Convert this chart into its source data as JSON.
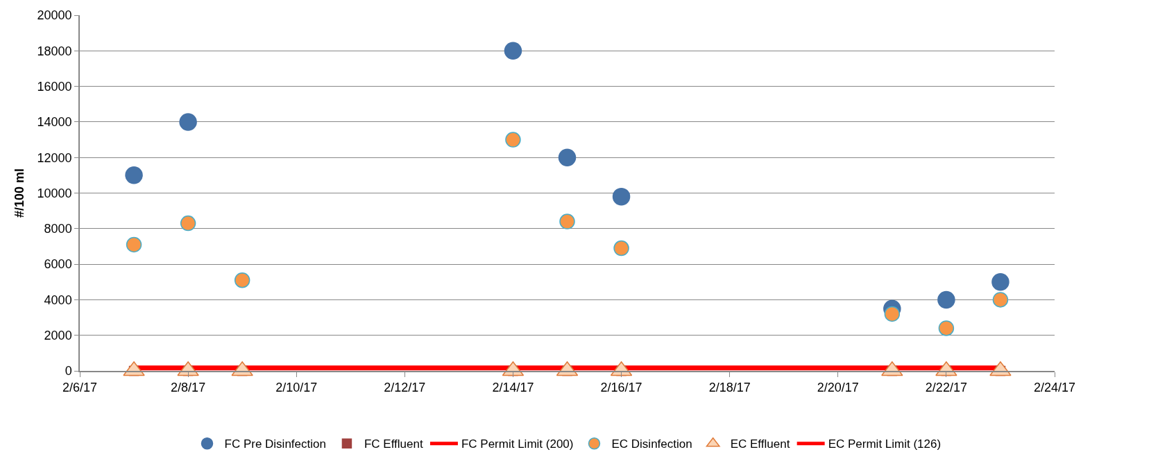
{
  "chart_data": {
    "type": "scatter",
    "ylabel": "#/100 ml",
    "x": [
      "--02-07",
      "--02-08",
      "--02-09",
      "--02-14",
      "--02-15",
      "--02-16",
      "--02-21",
      "--02-22",
      "--02-23"
    ],
    "series": [
      {
        "name": "FC Pre Disinfection",
        "color": "#4572a7",
        "marker": "circle",
        "values": [
          11000,
          14000,
          null,
          18000,
          12000,
          9800,
          3500,
          4000,
          5000
        ]
      },
      {
        "name": "FC Effluent",
        "color": "#a0413f",
        "marker": "square",
        "values": [
          0,
          0,
          0,
          0,
          0,
          0,
          0,
          0,
          0
        ]
      },
      {
        "name": "FC Permit Limit (200)",
        "type": "line",
        "color": "#ff0000",
        "marker": "none",
        "x": [
          "--02-07",
          "--02-23"
        ],
        "values": [
          200,
          200
        ]
      },
      {
        "name": "EC Disinfection",
        "color": "#f79646",
        "marker": "circle",
        "values": [
          7100,
          8300,
          5100,
          13000,
          8400,
          6900,
          3200,
          2400,
          4000
        ]
      },
      {
        "name": "EC Effluent",
        "color": "#fbd4b4",
        "marker": "triangle",
        "values": [
          0,
          0,
          0,
          0,
          0,
          0,
          0,
          0,
          0
        ]
      },
      {
        "name": "EC Permit Limit (126)",
        "type": "line",
        "color": "#ff0000",
        "marker": "none",
        "x": [
          "--02-07",
          "--02-23"
        ],
        "values": [
          126,
          126
        ]
      }
    ],
    "xlim": [
      "--02-06",
      "--02-24"
    ],
    "xticks": [
      {
        "value": "--02-06",
        "label": "2/6/17"
      },
      {
        "value": "--02-08",
        "label": "2/8/17"
      },
      {
        "value": "--02-10",
        "label": "2/10/17"
      },
      {
        "value": "--02-12",
        "label": "2/12/17"
      },
      {
        "value": "--02-14",
        "label": "2/14/17"
      },
      {
        "value": "--02-16",
        "label": "2/16/17"
      },
      {
        "value": "--02-18",
        "label": "2/18/17"
      },
      {
        "value": "--02-20",
        "label": "2/20/17"
      },
      {
        "value": "--02-22",
        "label": "2/22/17"
      },
      {
        "value": "--02-24",
        "label": "2/24/17"
      }
    ],
    "ylim": [
      0,
      20000
    ],
    "yticks": [
      0,
      2000,
      4000,
      6000,
      8000,
      10000,
      12000,
      14000,
      16000,
      18000,
      20000
    ],
    "grid": "y",
    "legend": "bottom"
  }
}
